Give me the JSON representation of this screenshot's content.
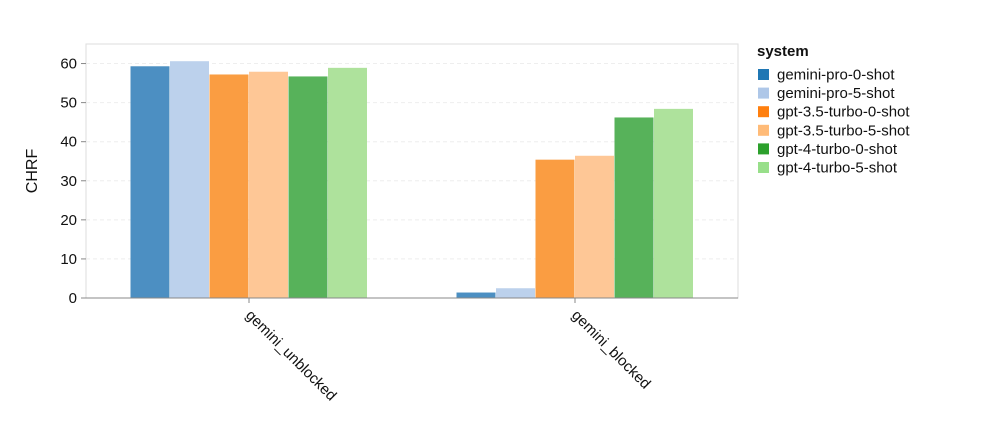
{
  "chart_data": {
    "type": "bar",
    "title": "",
    "xlabel": "",
    "ylabel": "CHRF",
    "ylim": [
      0,
      65
    ],
    "yticks": [
      0,
      10,
      20,
      30,
      40,
      50,
      60
    ],
    "grid": true,
    "legend_position": "right",
    "legend_title": "system",
    "categories": [
      "gemini_unblocked",
      "gemini_blocked"
    ],
    "series": [
      {
        "name": "gemini-pro-0-shot",
        "color": "#4c8fc2",
        "swatch": "#1f77b4",
        "values": [
          59.3,
          1.4
        ]
      },
      {
        "name": "gemini-pro-5-shot",
        "color": "#bcd1ec",
        "swatch": "#aec7e8",
        "values": [
          60.6,
          2.5
        ]
      },
      {
        "name": "gpt-3.5-turbo-0-shot",
        "color": "#fa9d42",
        "swatch": "#ff7f0e",
        "values": [
          57.2,
          35.4
        ]
      },
      {
        "name": "gpt-3.5-turbo-5-shot",
        "color": "#fec796",
        "swatch": "#ffbb78",
        "values": [
          57.9,
          36.4
        ]
      },
      {
        "name": "gpt-4-turbo-0-shot",
        "color": "#57b25a",
        "swatch": "#2ca02c",
        "values": [
          56.7,
          46.2
        ]
      },
      {
        "name": "gpt-4-turbo-5-shot",
        "color": "#aee29c",
        "swatch": "#98df8a",
        "values": [
          58.9,
          48.4
        ]
      }
    ]
  }
}
